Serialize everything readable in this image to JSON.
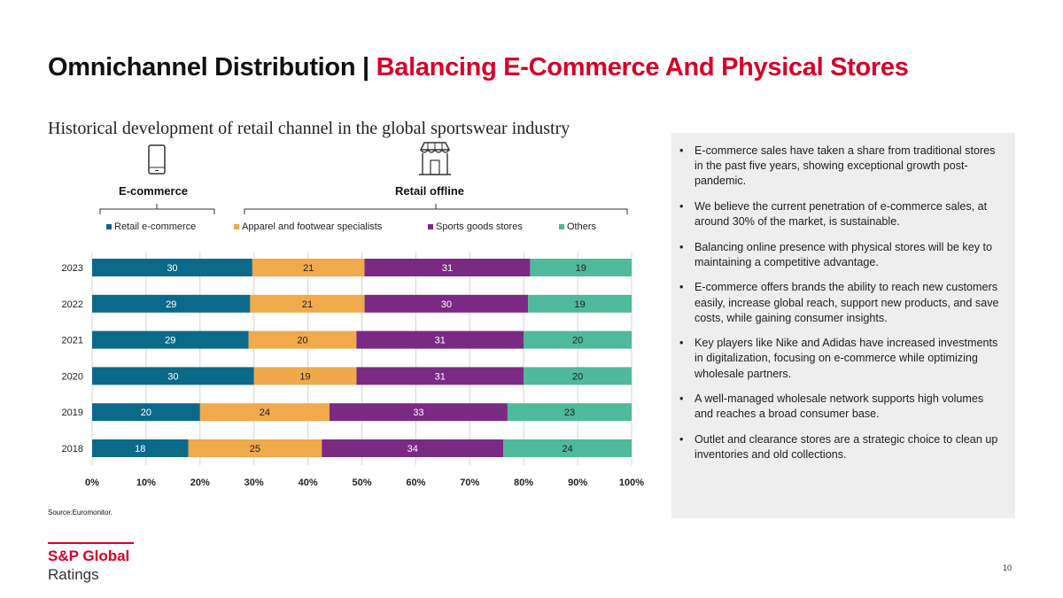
{
  "slide": {
    "title_main": "Omnichannel Distribution",
    "title_sep": "|",
    "title_highlight": "Balancing E-Commerce And Physical Stores",
    "subtitle": "Historical development of retail channel in the global sportswear industry",
    "source": "Source:Euromonitor.",
    "page_number": "10"
  },
  "groups": {
    "ecommerce": {
      "label": "E-commerce",
      "icon": "smartphone-icon"
    },
    "offline": {
      "label": "Retail offline",
      "icon": "storefront-icon"
    }
  },
  "colors": {
    "retail_ecommerce": "#0b6a8a",
    "apparel": "#f0a94b",
    "sports_goods": "#7b2a84",
    "others": "#4fb99b",
    "accent_red": "#d6002a"
  },
  "chart_data": {
    "type": "bar",
    "orientation": "horizontal",
    "stacked": true,
    "categories": [
      "2023",
      "2022",
      "2021",
      "2020",
      "2019",
      "2018"
    ],
    "series": [
      {
        "name": "Retail e-commerce",
        "values": [
          30,
          29,
          29,
          30,
          20,
          18
        ]
      },
      {
        "name": "Apparel and footwear specialists",
        "values": [
          21,
          21,
          20,
          19,
          24,
          25
        ]
      },
      {
        "name": "Sports goods stores",
        "values": [
          31,
          30,
          31,
          31,
          33,
          34
        ]
      },
      {
        "name": "Others",
        "values": [
          19,
          19,
          20,
          20,
          23,
          24
        ]
      }
    ],
    "xlim": [
      0,
      100
    ],
    "xticks": [
      "0%",
      "10%",
      "20%",
      "30%",
      "40%",
      "50%",
      "60%",
      "70%",
      "80%",
      "90%",
      "100%"
    ],
    "grid": true,
    "legend_position": "top"
  },
  "bullets": [
    "E-commerce sales have taken a share from traditional stores in the past five years, showing exceptional growth post-pandemic.",
    "We believe the current penetration of e-commerce sales, at around 30% of the market, is sustainable.",
    "Balancing online presence with physical stores will be key to maintaining a competitive advantage.",
    "E-commerce offers brands the ability to reach new customers easily, increase global reach, support new products, and save costs, while gaining consumer insights.",
    "Key players like Nike and Adidas have increased investments in digitalization, focusing on e-commerce while optimizing wholesale partners.",
    "A well-managed wholesale network supports high volumes and reaches a broad consumer base.",
    "Outlet and clearance stores are a strategic choice to clean up inventories and old collections."
  ],
  "logo": {
    "line1": "S&P Global",
    "line2": "Ratings"
  }
}
